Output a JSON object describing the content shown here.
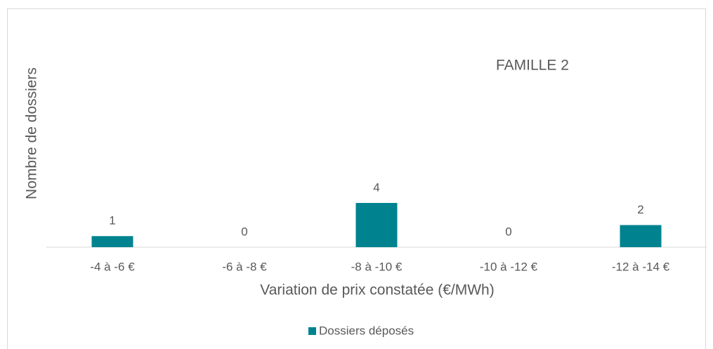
{
  "chart_data": {
    "type": "bar",
    "annotation": "FAMILLE 2",
    "x_label": "Variation de prix constatée (€/MWh)",
    "y_label": "Nombre de dossiers",
    "categories": [
      "-4 à -6 €",
      "-6 à -8 €",
      "-8 à -10 €",
      "-10 à -12 €",
      "-12 à -14 €"
    ],
    "series": [
      {
        "name": "Dossiers déposés",
        "color": "#00838f",
        "values": [
          1,
          0,
          4,
          0,
          2
        ]
      }
    ],
    "ylim": [
      0,
      20
    ],
    "legend": "bottom"
  }
}
